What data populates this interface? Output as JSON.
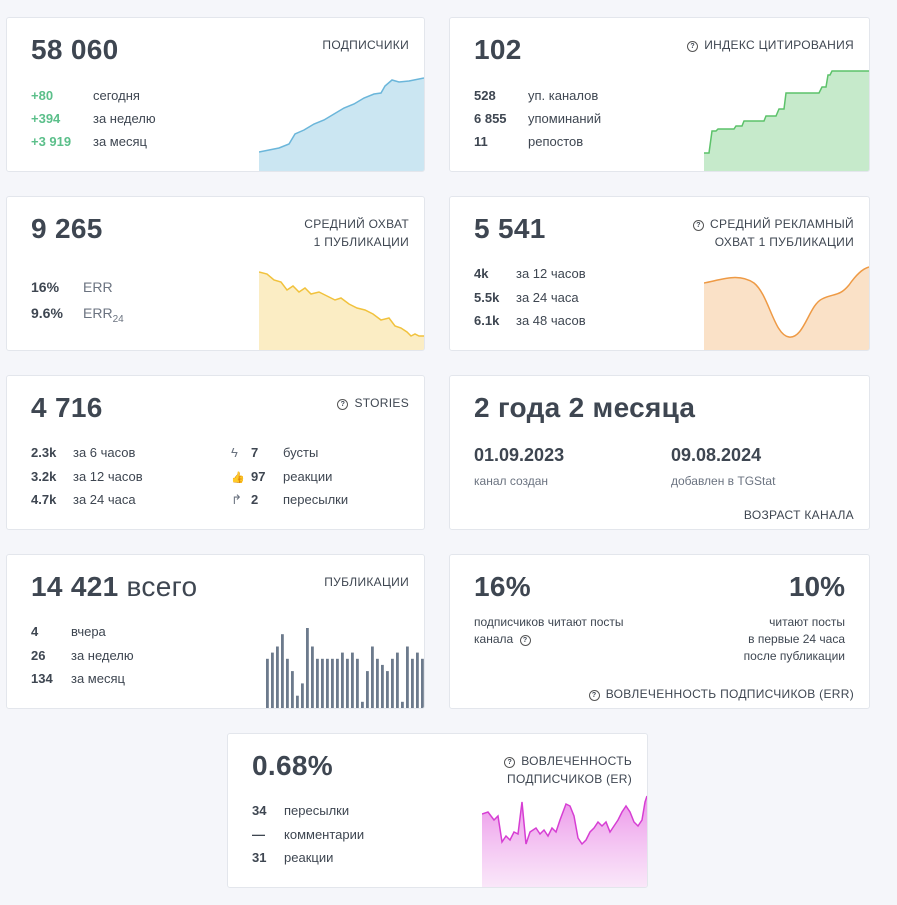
{
  "cards": {
    "subscribers": {
      "value": "58 060",
      "title": "ПОДПИСЧИКИ",
      "stats": [
        {
          "value": "+80",
          "label": "сегодня"
        },
        {
          "value": "+394",
          "label": "за неделю"
        },
        {
          "value": "+3 919",
          "label": "за месяц"
        }
      ],
      "color": "#6bb6da"
    },
    "citation": {
      "value": "102",
      "title": "ИНДЕКС ЦИТИРОВАНИЯ",
      "stats": [
        {
          "value": "528",
          "label": "уп. каналов"
        },
        {
          "value": "6 855",
          "label": "упоминаний"
        },
        {
          "value": "11",
          "label": "репостов"
        }
      ],
      "color": "#5cc26a"
    },
    "avg_reach": {
      "value": "9 265",
      "title_line1": "СРЕДНИЙ ОХВАТ",
      "title_line2": "1 ПУБЛИКАЦИИ",
      "stats": [
        {
          "value": "16%",
          "label": "ERR",
          "sub": ""
        },
        {
          "value": "9.6%",
          "label": "ERR",
          "sub": "24"
        }
      ],
      "color": "#f1c23d"
    },
    "ad_reach": {
      "value": "5 541",
      "title_line1": "СРЕДНИЙ РЕКЛАМНЫЙ",
      "title_line2": "ОХВАТ 1 ПУБЛИКАЦИИ",
      "stats": [
        {
          "value": "4k",
          "label": "за 12 часов"
        },
        {
          "value": "5.5k",
          "label": "за 24 часа"
        },
        {
          "value": "6.1k",
          "label": "за 48 часов"
        }
      ],
      "color": "#ee9a45"
    },
    "stories": {
      "value": "4 716",
      "title": "STORIES",
      "stats": [
        {
          "value": "2.3k",
          "label": "за 6 часов"
        },
        {
          "value": "3.2k",
          "label": "за 12 часов"
        },
        {
          "value": "4.7k",
          "label": "за 24 часа"
        }
      ],
      "stats2": [
        {
          "icon": "lightning-icon",
          "glyph": "ϟ",
          "value": "7",
          "label": "бусты"
        },
        {
          "icon": "thumbs-up-icon",
          "glyph": "👍",
          "value": "97",
          "label": "реакции"
        },
        {
          "icon": "share-arrow-icon",
          "glyph": "↱",
          "value": "2",
          "label": "пересылки"
        }
      ]
    },
    "age": {
      "value": "2 года 2 месяца",
      "created_date": "01.09.2023",
      "created_label": "канал создан",
      "added_date": "09.08.2024",
      "added_label": "добавлен в TGStat",
      "title": "ВОЗРАСТ КАНАЛА"
    },
    "publications": {
      "value": "14 421",
      "value_suffix": "всего",
      "title": "ПУБЛИКАЦИИ",
      "stats": [
        {
          "value": "4",
          "label": "вчера"
        },
        {
          "value": "26",
          "label": "за неделю"
        },
        {
          "value": "134",
          "label": "за месяц"
        }
      ],
      "bars": [
        8,
        9,
        10,
        12,
        8,
        6,
        2,
        4,
        13,
        10,
        8,
        8,
        8,
        8,
        8,
        9,
        8,
        9,
        8,
        1,
        6,
        10,
        8,
        7,
        6,
        8,
        9,
        1,
        10,
        8,
        9,
        8
      ],
      "color": "#6c7a8c"
    },
    "err": {
      "left_value": "16%",
      "left_line1": "подписчиков читают посты",
      "left_line2": "канала",
      "right_value": "10%",
      "right_line1": "читают посты",
      "right_line2": "в первые 24 часа",
      "right_line3": "после публикации",
      "title": "ВОВЛЕЧЕННОСТЬ ПОДПИСЧИКОВ (ERR)"
    },
    "er": {
      "value": "0.68%",
      "title_line1": "ВОВЛЕЧЕННОСТЬ",
      "title_line2": "ПОДПИСЧИКОВ (ER)",
      "stats": [
        {
          "value": "34",
          "label": "пересылки"
        },
        {
          "value": "—",
          "label": "комментарии"
        },
        {
          "value": "31",
          "label": "реакции"
        }
      ],
      "color": "#d63ed3"
    }
  }
}
